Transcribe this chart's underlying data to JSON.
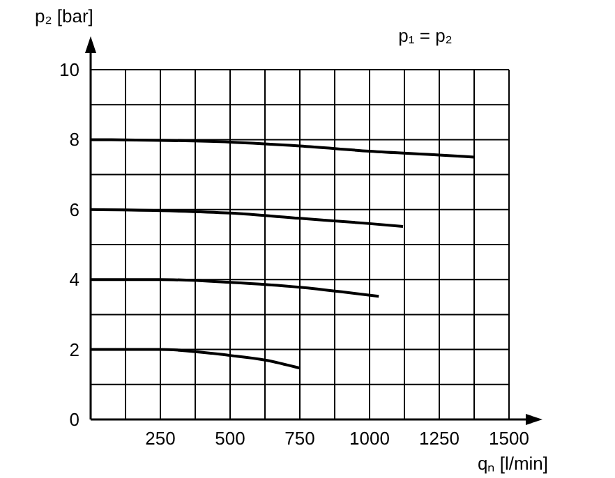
{
  "chart_data": {
    "type": "line",
    "xlabel": "qₙ [l/min]",
    "ylabel": "p₂ [bar]",
    "annotations": [
      "p₁ = p₂"
    ],
    "xlim": [
      0,
      1500
    ],
    "ylim": [
      0,
      10
    ],
    "xticks": [
      {
        "value": 125,
        "label": null
      },
      250,
      {
        "value": 375,
        "label": null
      },
      500,
      {
        "value": 625,
        "label": null
      },
      750,
      {
        "value": 875,
        "label": null
      },
      1000,
      {
        "value": 1125,
        "label": null
      },
      1250,
      {
        "value": 1375,
        "label": null
      },
      1500
    ],
    "yticks": [
      0,
      {
        "value": 1,
        "label": null
      },
      2,
      {
        "value": 3,
        "label": null
      },
      4,
      {
        "value": 5,
        "label": null
      },
      6,
      {
        "value": 7,
        "label": null
      },
      8,
      {
        "value": 9,
        "label": null
      },
      10
    ],
    "grid": true,
    "marker": "none",
    "line_style": "solid",
    "series": [
      {
        "color": "#000000",
        "x": [
          0,
          250,
          500,
          750,
          1000,
          1250,
          1375
        ],
        "values": [
          8,
          7.98,
          7.93,
          7.82,
          7.67,
          7.56,
          7.5
        ]
      },
      {
        "color": "#000000",
        "x": [
          0,
          250,
          500,
          750,
          1000,
          1120
        ],
        "values": [
          6,
          5.97,
          5.9,
          5.75,
          5.6,
          5.52
        ]
      },
      {
        "color": "#000000",
        "x": [
          0,
          250,
          500,
          750,
          900,
          1033
        ],
        "values": [
          4,
          4,
          3.92,
          3.78,
          3.65,
          3.52
        ]
      },
      {
        "color": "#000000",
        "x": [
          0,
          250,
          500,
          625,
          750
        ],
        "values": [
          2,
          2,
          1.83,
          1.7,
          1.47
        ]
      }
    ]
  }
}
